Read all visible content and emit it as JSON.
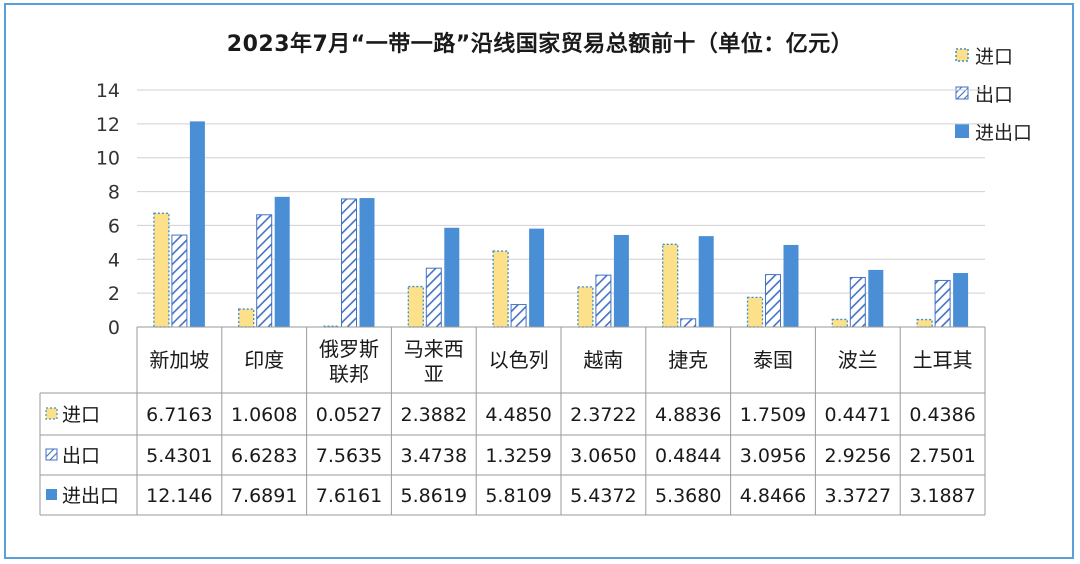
{
  "chart_data": {
    "type": "bar",
    "title": "2023年7月“一带一路”沿线国家贸易总额前十（单位：亿元）",
    "categories": [
      "新加坡",
      "印度",
      "俄罗斯\n联邦",
      "马来西\n亚",
      "以色列",
      "越南",
      "捷克",
      "泰国",
      "波兰",
      "土耳其"
    ],
    "series": [
      {
        "name": "进口",
        "values": [
          6.7163,
          1.0608,
          0.0527,
          2.3882,
          4.485,
          2.3722,
          4.8836,
          1.7509,
          0.4471,
          0.4386
        ],
        "value_labels": [
          "6.7163",
          "1.0608",
          "0.0527",
          "2.3882",
          "4.4850",
          "2.3722",
          "4.8836",
          "1.7509",
          "0.4471",
          "0.4386"
        ],
        "color": "#fde08a",
        "pattern": "dotted-border"
      },
      {
        "name": "出口",
        "values": [
          5.4301,
          6.6283,
          7.5635,
          3.4738,
          1.3259,
          3.065,
          0.4844,
          3.0956,
          2.9256,
          2.7501
        ],
        "value_labels": [
          "5.4301",
          "6.6283",
          "7.5635",
          "3.4738",
          "1.3259",
          "3.0650",
          "0.4844",
          "3.0956",
          "2.9256",
          "2.7501"
        ],
        "color": "#4472c4",
        "pattern": "diagonal-hatch"
      },
      {
        "name": "进出口",
        "values": [
          12.146,
          7.6891,
          7.6161,
          5.8619,
          5.8109,
          5.4372,
          5.368,
          4.8466,
          3.3727,
          3.1887
        ],
        "value_labels": [
          "12.146",
          "7.6891",
          "7.6161",
          "5.8619",
          "5.8109",
          "5.4372",
          "5.3680",
          "4.8466",
          "3.3727",
          "3.1887"
        ],
        "color": "#4a8fd6",
        "pattern": "solid"
      }
    ],
    "yticks": [
      "0",
      "2",
      "4",
      "6",
      "8",
      "10",
      "12",
      "14"
    ],
    "ylim": [
      0,
      14
    ],
    "grid": true,
    "legend_position": "top-right",
    "has_data_table": true
  }
}
